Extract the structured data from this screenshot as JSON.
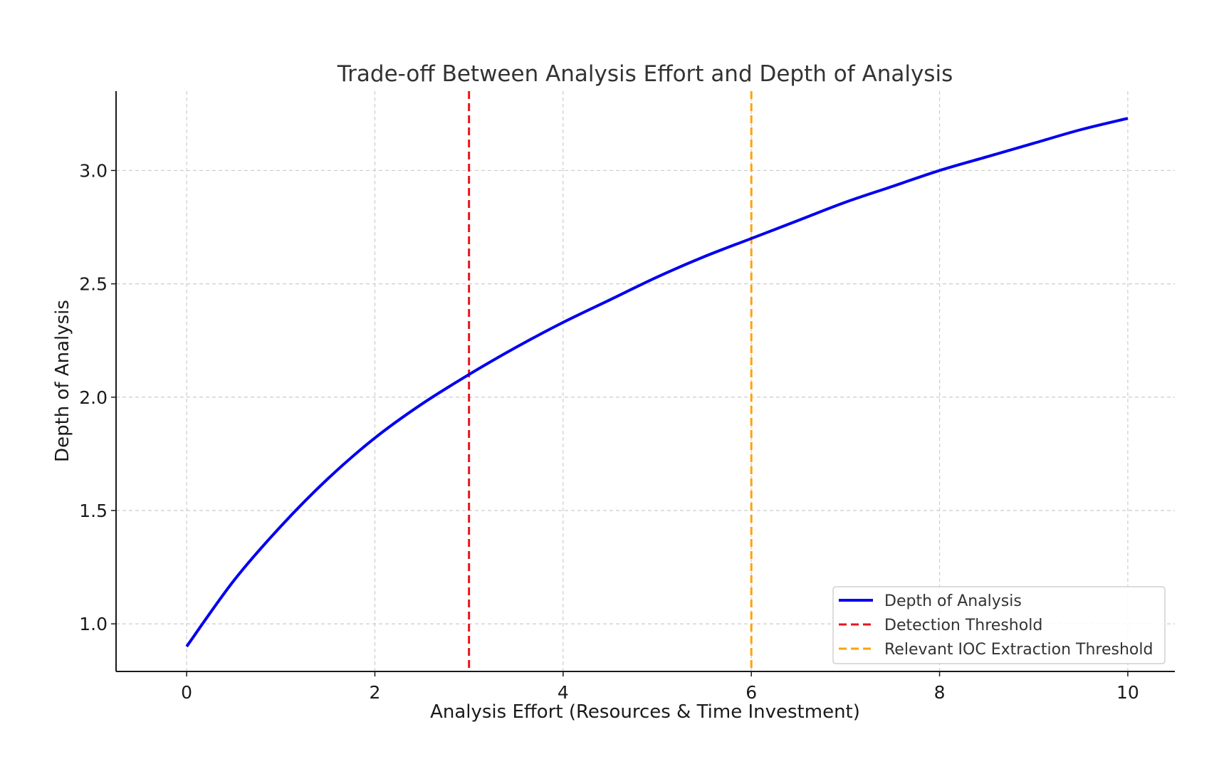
{
  "chart_data": {
    "type": "line",
    "title": "Trade-off Between Analysis Effort and Depth of Analysis",
    "xlabel": "Analysis Effort (Resources & Time Investment)",
    "ylabel": "Depth of Analysis",
    "xlim": [
      -0.75,
      10.5
    ],
    "ylim": [
      0.79,
      3.35
    ],
    "x_ticks": [
      0,
      2,
      4,
      6,
      8,
      10
    ],
    "y_ticks": [
      1.0,
      1.5,
      2.0,
      2.5,
      3.0
    ],
    "x_tick_labels": [
      "0",
      "2",
      "4",
      "6",
      "8",
      "10"
    ],
    "y_tick_labels": [
      "1.0",
      "1.5",
      "2.0",
      "2.5",
      "3.0"
    ],
    "grid": true,
    "legend_position": "lower-right",
    "series": [
      {
        "name": "Depth of Analysis",
        "color": "#0000ee",
        "style": "solid",
        "x": [
          0,
          0.5,
          1,
          1.5,
          2,
          2.5,
          3,
          3.5,
          4,
          4.5,
          5,
          5.5,
          6,
          6.5,
          7,
          7.5,
          8,
          8.5,
          9,
          9.5,
          10
        ],
        "y": [
          0.9,
          1.19,
          1.43,
          1.64,
          1.82,
          1.97,
          2.1,
          2.22,
          2.33,
          2.43,
          2.53,
          2.62,
          2.7,
          2.78,
          2.86,
          2.93,
          3.0,
          3.06,
          3.12,
          3.18,
          3.23
        ]
      }
    ],
    "vlines": [
      {
        "name": "Detection Threshold",
        "x": 3,
        "color": "#e8141c",
        "style": "dashed"
      },
      {
        "name": "Relevant IOC Extraction Threshold",
        "x": 6,
        "color": "#ffa10a",
        "style": "dashed"
      }
    ]
  }
}
